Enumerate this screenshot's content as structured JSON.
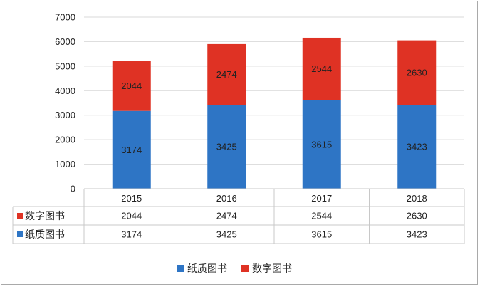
{
  "chart_data": {
    "type": "bar",
    "stacked": true,
    "categories": [
      "2015",
      "2016",
      "2017",
      "2018"
    ],
    "series": [
      {
        "name": "纸质图书",
        "values": [
          3174,
          3425,
          3615,
          3423
        ],
        "color": "#2e75c5"
      },
      {
        "name": "数字图书",
        "values": [
          2044,
          2474,
          2544,
          2630
        ],
        "color": "#df3224"
      }
    ],
    "ylim": [
      0,
      7000
    ],
    "yticks": [
      "0",
      "1000",
      "2000",
      "3000",
      "4000",
      "5000",
      "6000",
      "7000"
    ],
    "grid": true,
    "data_labels": true,
    "data_table": true,
    "legend_position": "bottom"
  }
}
